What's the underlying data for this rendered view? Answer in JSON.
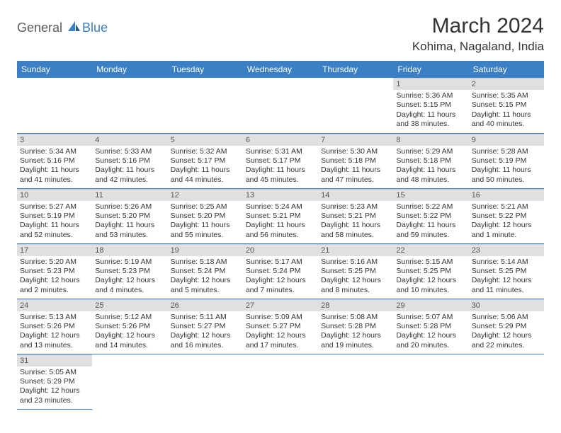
{
  "logo": {
    "part1": "General",
    "part2": "Blue"
  },
  "title": "March 2024",
  "location": "Kohima, Nagaland, India",
  "colors": {
    "header_bg": "#3b7fc4",
    "header_text": "#ffffff",
    "daynum_bg": "#e0e0e0",
    "cell_border": "#3b7fc4",
    "body_text": "#333333"
  },
  "day_headers": [
    "Sunday",
    "Monday",
    "Tuesday",
    "Wednesday",
    "Thursday",
    "Friday",
    "Saturday"
  ],
  "weeks": [
    [
      null,
      null,
      null,
      null,
      null,
      {
        "n": "1",
        "sr": "Sunrise: 5:36 AM",
        "ss": "Sunset: 5:15 PM",
        "dl": "Daylight: 11 hours and 38 minutes."
      },
      {
        "n": "2",
        "sr": "Sunrise: 5:35 AM",
        "ss": "Sunset: 5:15 PM",
        "dl": "Daylight: 11 hours and 40 minutes."
      }
    ],
    [
      {
        "n": "3",
        "sr": "Sunrise: 5:34 AM",
        "ss": "Sunset: 5:16 PM",
        "dl": "Daylight: 11 hours and 41 minutes."
      },
      {
        "n": "4",
        "sr": "Sunrise: 5:33 AM",
        "ss": "Sunset: 5:16 PM",
        "dl": "Daylight: 11 hours and 42 minutes."
      },
      {
        "n": "5",
        "sr": "Sunrise: 5:32 AM",
        "ss": "Sunset: 5:17 PM",
        "dl": "Daylight: 11 hours and 44 minutes."
      },
      {
        "n": "6",
        "sr": "Sunrise: 5:31 AM",
        "ss": "Sunset: 5:17 PM",
        "dl": "Daylight: 11 hours and 45 minutes."
      },
      {
        "n": "7",
        "sr": "Sunrise: 5:30 AM",
        "ss": "Sunset: 5:18 PM",
        "dl": "Daylight: 11 hours and 47 minutes."
      },
      {
        "n": "8",
        "sr": "Sunrise: 5:29 AM",
        "ss": "Sunset: 5:18 PM",
        "dl": "Daylight: 11 hours and 48 minutes."
      },
      {
        "n": "9",
        "sr": "Sunrise: 5:28 AM",
        "ss": "Sunset: 5:19 PM",
        "dl": "Daylight: 11 hours and 50 minutes."
      }
    ],
    [
      {
        "n": "10",
        "sr": "Sunrise: 5:27 AM",
        "ss": "Sunset: 5:19 PM",
        "dl": "Daylight: 11 hours and 52 minutes."
      },
      {
        "n": "11",
        "sr": "Sunrise: 5:26 AM",
        "ss": "Sunset: 5:20 PM",
        "dl": "Daylight: 11 hours and 53 minutes."
      },
      {
        "n": "12",
        "sr": "Sunrise: 5:25 AM",
        "ss": "Sunset: 5:20 PM",
        "dl": "Daylight: 11 hours and 55 minutes."
      },
      {
        "n": "13",
        "sr": "Sunrise: 5:24 AM",
        "ss": "Sunset: 5:21 PM",
        "dl": "Daylight: 11 hours and 56 minutes."
      },
      {
        "n": "14",
        "sr": "Sunrise: 5:23 AM",
        "ss": "Sunset: 5:21 PM",
        "dl": "Daylight: 11 hours and 58 minutes."
      },
      {
        "n": "15",
        "sr": "Sunrise: 5:22 AM",
        "ss": "Sunset: 5:22 PM",
        "dl": "Daylight: 11 hours and 59 minutes."
      },
      {
        "n": "16",
        "sr": "Sunrise: 5:21 AM",
        "ss": "Sunset: 5:22 PM",
        "dl": "Daylight: 12 hours and 1 minute."
      }
    ],
    [
      {
        "n": "17",
        "sr": "Sunrise: 5:20 AM",
        "ss": "Sunset: 5:23 PM",
        "dl": "Daylight: 12 hours and 2 minutes."
      },
      {
        "n": "18",
        "sr": "Sunrise: 5:19 AM",
        "ss": "Sunset: 5:23 PM",
        "dl": "Daylight: 12 hours and 4 minutes."
      },
      {
        "n": "19",
        "sr": "Sunrise: 5:18 AM",
        "ss": "Sunset: 5:24 PM",
        "dl": "Daylight: 12 hours and 5 minutes."
      },
      {
        "n": "20",
        "sr": "Sunrise: 5:17 AM",
        "ss": "Sunset: 5:24 PM",
        "dl": "Daylight: 12 hours and 7 minutes."
      },
      {
        "n": "21",
        "sr": "Sunrise: 5:16 AM",
        "ss": "Sunset: 5:25 PM",
        "dl": "Daylight: 12 hours and 8 minutes."
      },
      {
        "n": "22",
        "sr": "Sunrise: 5:15 AM",
        "ss": "Sunset: 5:25 PM",
        "dl": "Daylight: 12 hours and 10 minutes."
      },
      {
        "n": "23",
        "sr": "Sunrise: 5:14 AM",
        "ss": "Sunset: 5:25 PM",
        "dl": "Daylight: 12 hours and 11 minutes."
      }
    ],
    [
      {
        "n": "24",
        "sr": "Sunrise: 5:13 AM",
        "ss": "Sunset: 5:26 PM",
        "dl": "Daylight: 12 hours and 13 minutes."
      },
      {
        "n": "25",
        "sr": "Sunrise: 5:12 AM",
        "ss": "Sunset: 5:26 PM",
        "dl": "Daylight: 12 hours and 14 minutes."
      },
      {
        "n": "26",
        "sr": "Sunrise: 5:11 AM",
        "ss": "Sunset: 5:27 PM",
        "dl": "Daylight: 12 hours and 16 minutes."
      },
      {
        "n": "27",
        "sr": "Sunrise: 5:09 AM",
        "ss": "Sunset: 5:27 PM",
        "dl": "Daylight: 12 hours and 17 minutes."
      },
      {
        "n": "28",
        "sr": "Sunrise: 5:08 AM",
        "ss": "Sunset: 5:28 PM",
        "dl": "Daylight: 12 hours and 19 minutes."
      },
      {
        "n": "29",
        "sr": "Sunrise: 5:07 AM",
        "ss": "Sunset: 5:28 PM",
        "dl": "Daylight: 12 hours and 20 minutes."
      },
      {
        "n": "30",
        "sr": "Sunrise: 5:06 AM",
        "ss": "Sunset: 5:29 PM",
        "dl": "Daylight: 12 hours and 22 minutes."
      }
    ],
    [
      {
        "n": "31",
        "sr": "Sunrise: 5:05 AM",
        "ss": "Sunset: 5:29 PM",
        "dl": "Daylight: 12 hours and 23 minutes."
      },
      null,
      null,
      null,
      null,
      null,
      null
    ]
  ]
}
